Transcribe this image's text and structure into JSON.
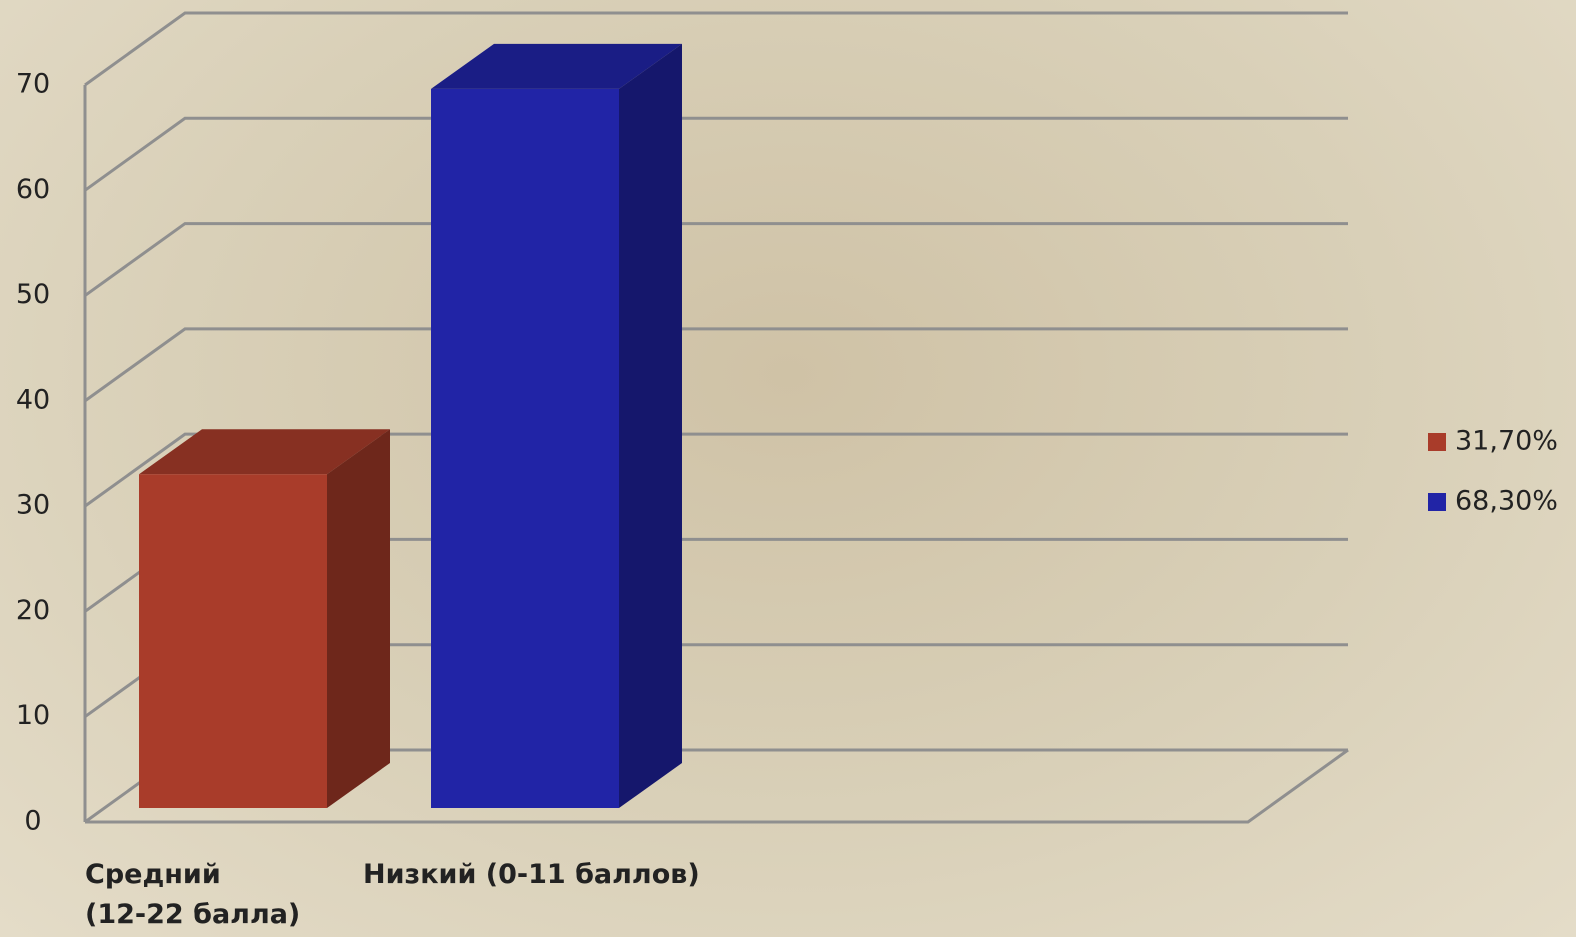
{
  "chart_data": {
    "type": "bar3d",
    "categories": [
      "Средний\n(12-22 балла)",
      "Низкий (0-11 баллов)"
    ],
    "series": [
      {
        "name": "31,70%",
        "color": "#a93c2a",
        "values": [
          31.7,
          null
        ]
      },
      {
        "name": "68,30%",
        "color": "#2124a6",
        "values": [
          null,
          68.3
        ]
      }
    ],
    "ylim": [
      0,
      70
    ],
    "yticks": [
      0,
      10,
      20,
      30,
      40,
      50,
      60,
      70
    ],
    "grid": true,
    "legend": "right"
  }
}
